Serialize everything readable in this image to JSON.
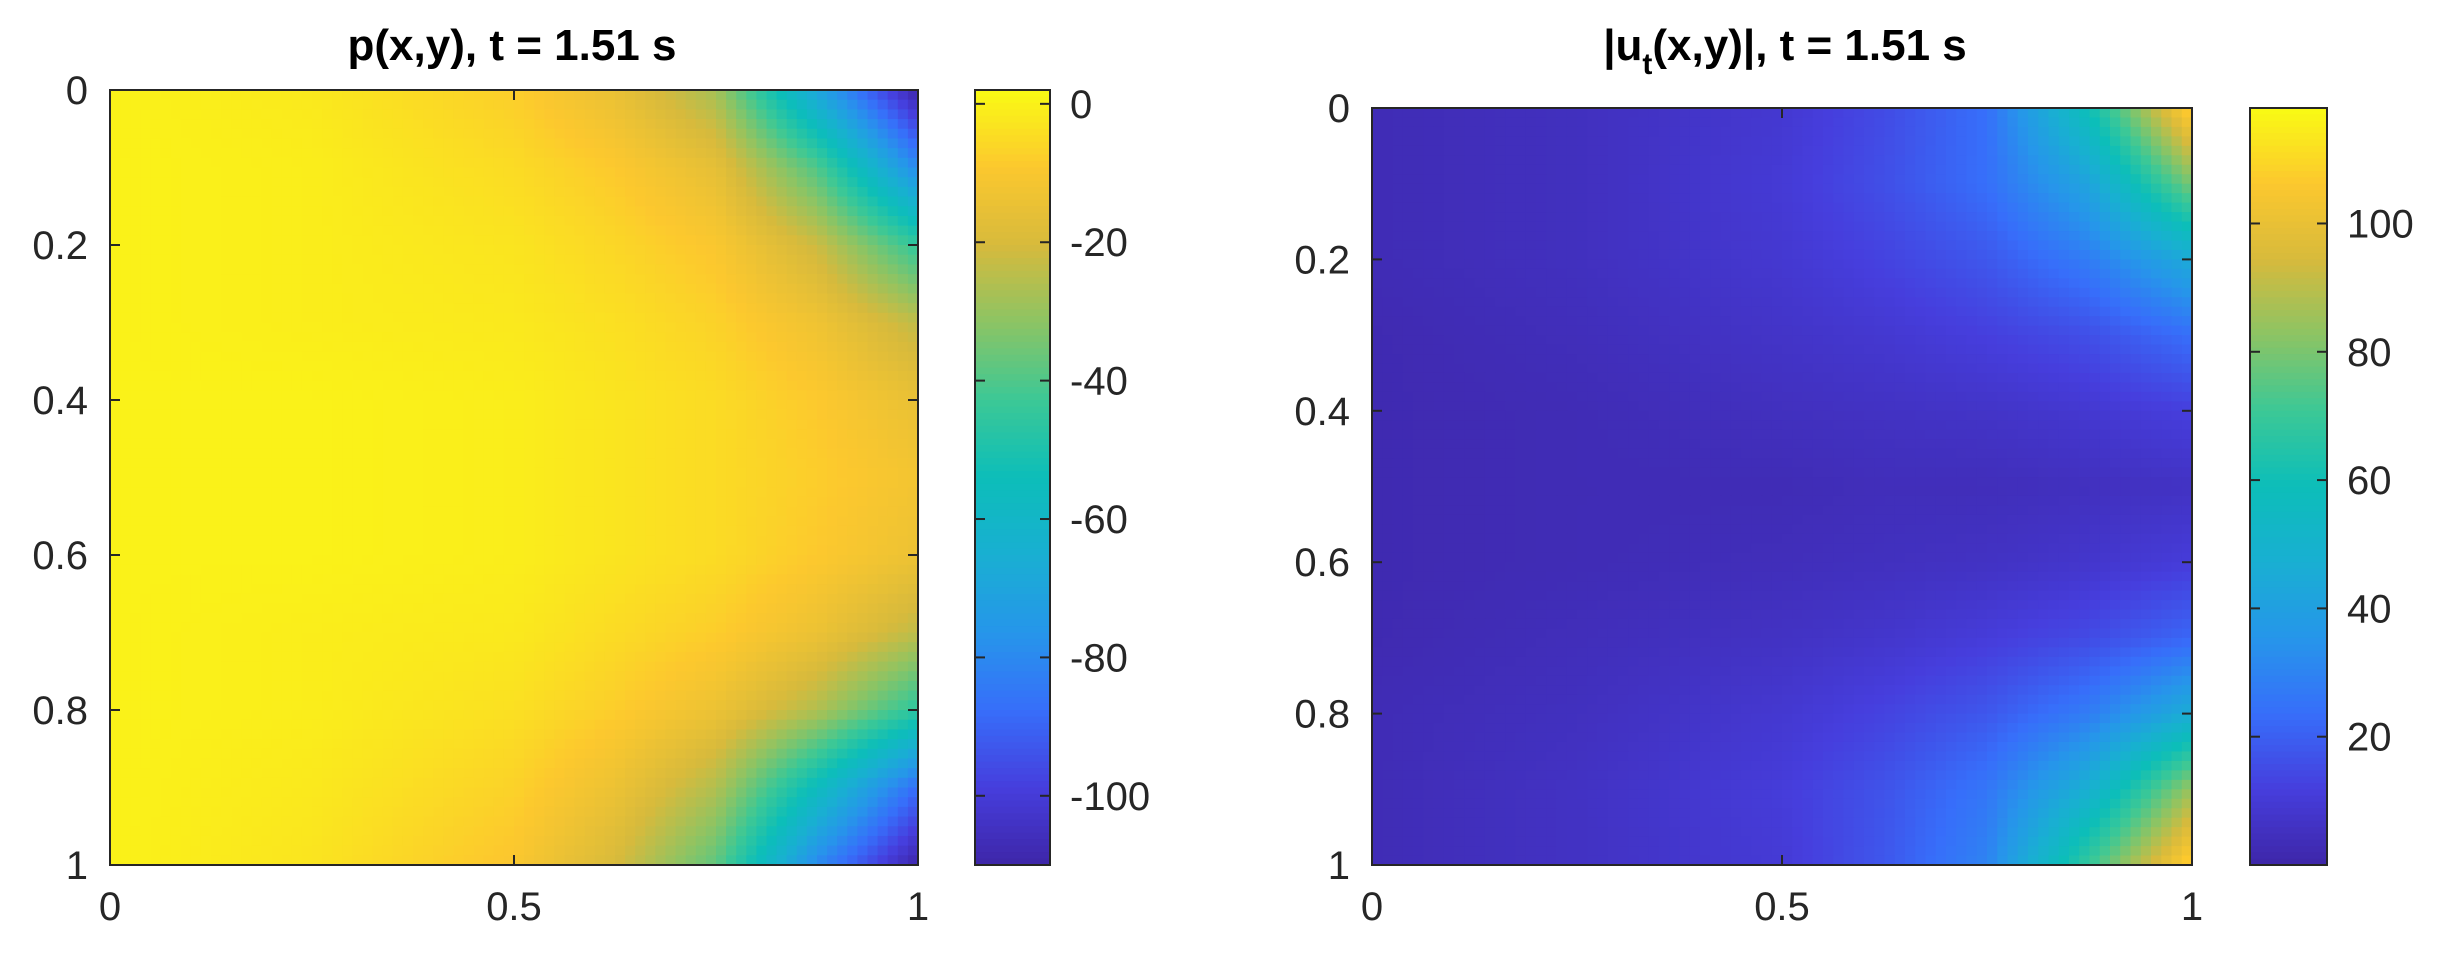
{
  "chart_data": [
    {
      "type": "heatmap",
      "title": "p(x,y), t = 1.51 s",
      "xlim": [
        0,
        1
      ],
      "ylim": [
        0,
        1
      ],
      "y_reversed": true,
      "xticks": [
        0,
        0.5,
        1
      ],
      "xtick_labels": [
        "0",
        "0.5",
        "1"
      ],
      "yticks": [
        0,
        0.2,
        0.4,
        0.6,
        0.8,
        1
      ],
      "ytick_labels": [
        "0",
        "0.2",
        "0.4",
        "0.6",
        "0.8",
        "1"
      ],
      "colormap": "parula",
      "clim": [
        -110,
        2
      ],
      "colorbar_ticks": [
        0,
        -20,
        -40,
        -60,
        -80,
        -100
      ],
      "colorbar_tick_labels": [
        "0",
        "-20",
        "-40",
        "-60",
        "-80",
        "-100"
      ],
      "x": [
        0,
        0.25,
        0.5,
        0.625,
        0.75,
        0.875,
        1
      ],
      "y": [
        0,
        0.1,
        0.2,
        0.3,
        0.4,
        0.5,
        0.6,
        0.7,
        0.8,
        0.9,
        1
      ],
      "z": [
        [
          0,
          -2,
          -8,
          -15,
          -28,
          -70,
          -110
        ],
        [
          0,
          -1,
          -5,
          -9,
          -16,
          -40,
          -80
        ],
        [
          0,
          -1,
          -3,
          -6,
          -10,
          -22,
          -45
        ],
        [
          0,
          -1,
          -2,
          -4,
          -7,
          -13,
          -24
        ],
        [
          0,
          0,
          -1,
          -3,
          -5,
          -9,
          -15
        ],
        [
          0,
          0,
          -1,
          -3,
          -5,
          -8,
          -12
        ],
        [
          0,
          0,
          -1,
          -3,
          -5,
          -9,
          -14
        ],
        [
          0,
          -1,
          -2,
          -5,
          -8,
          -14,
          -24
        ],
        [
          0,
          -1,
          -4,
          -8,
          -14,
          -26,
          -46
        ],
        [
          0,
          -2,
          -7,
          -14,
          -26,
          -56,
          -88
        ],
        [
          0,
          -3,
          -10,
          -20,
          -38,
          -80,
          -110
        ]
      ]
    },
    {
      "type": "heatmap",
      "title_main": "|u",
      "title_sub": "t",
      "title_rest": "(x,y)|, t = 1.51 s",
      "xlim": [
        0,
        1
      ],
      "ylim": [
        0,
        1
      ],
      "y_reversed": true,
      "xticks": [
        0,
        0.5,
        1
      ],
      "xtick_labels": [
        "0",
        "0.5",
        "1"
      ],
      "yticks": [
        0,
        0.2,
        0.4,
        0.6,
        0.8,
        1
      ],
      "ytick_labels": [
        "0",
        "0.2",
        "0.4",
        "0.6",
        "0.8",
        "1"
      ],
      "colormap": "parula",
      "clim": [
        0,
        118
      ],
      "colorbar_ticks": [
        20,
        40,
        60,
        80,
        100
      ],
      "colorbar_tick_labels": [
        "20",
        "40",
        "60",
        "80",
        "100"
      ],
      "x": [
        0,
        0.25,
        0.5,
        0.625,
        0.75,
        0.875,
        1
      ],
      "y": [
        0,
        0.1,
        0.2,
        0.3,
        0.4,
        0.5,
        0.6,
        0.7,
        0.8,
        0.9,
        1
      ],
      "z": [
        [
          3,
          5,
          9,
          15,
          24,
          60,
          110
        ],
        [
          3,
          5,
          10,
          16,
          24,
          42,
          80
        ],
        [
          3,
          5,
          9,
          13,
          18,
          28,
          45
        ],
        [
          2,
          4,
          7,
          9,
          12,
          16,
          24
        ],
        [
          2,
          3,
          5,
          6,
          7,
          9,
          12
        ],
        [
          2,
          3,
          3,
          4,
          4,
          5,
          6
        ],
        [
          2,
          3,
          4,
          5,
          6,
          8,
          11
        ],
        [
          2,
          4,
          6,
          8,
          11,
          15,
          22
        ],
        [
          3,
          5,
          9,
          13,
          18,
          28,
          46
        ],
        [
          3,
          6,
          11,
          17,
          26,
          48,
          85
        ],
        [
          3,
          6,
          10,
          18,
          30,
          70,
          110
        ]
      ]
    }
  ]
}
